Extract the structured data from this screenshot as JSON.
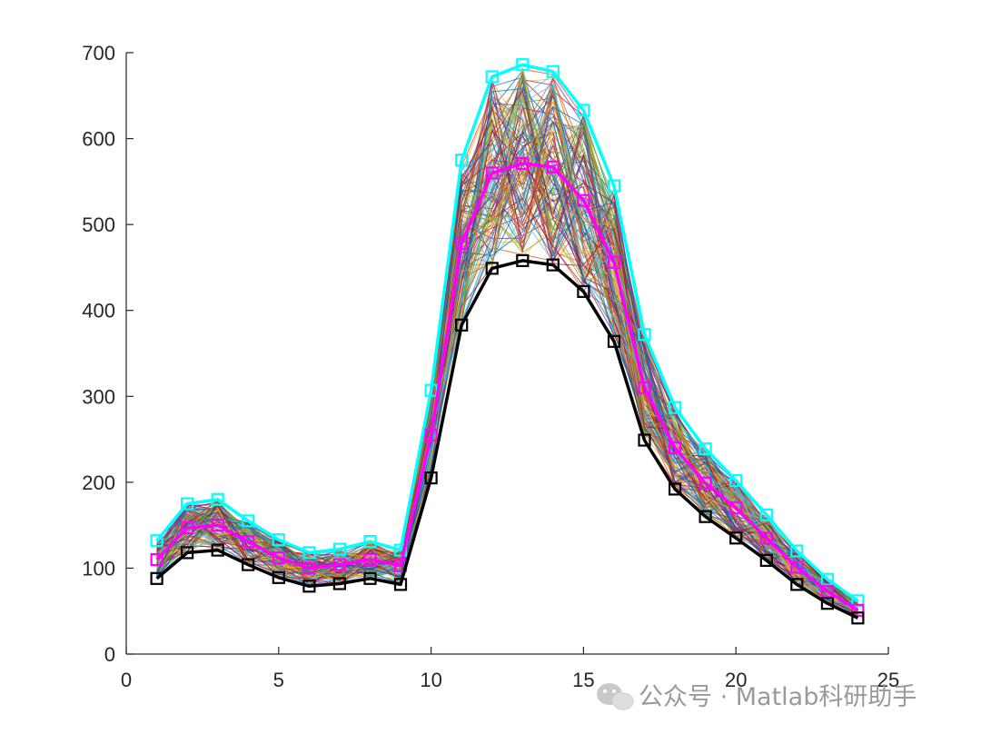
{
  "chart_data": {
    "type": "line",
    "title": "",
    "xlabel": "",
    "ylabel": "",
    "xlim": [
      0,
      25
    ],
    "ylim": [
      0,
      700
    ],
    "xticks": [
      0,
      5,
      10,
      15,
      20,
      25
    ],
    "yticks": [
      0,
      100,
      200,
      300,
      400,
      500,
      600,
      700
    ],
    "grid": false,
    "legend": "none",
    "x": [
      1,
      2,
      3,
      4,
      5,
      6,
      7,
      8,
      9,
      10,
      11,
      12,
      13,
      14,
      15,
      16,
      17,
      18,
      19,
      20,
      21,
      22,
      23,
      24
    ],
    "series": [
      {
        "role": "max",
        "color": "#00ffff",
        "marker": "square",
        "values": [
          132,
          175,
          180,
          155,
          133,
          118,
          122,
          131,
          121,
          307,
          575,
          672,
          686,
          678,
          633,
          545,
          372,
          287,
          239,
          202,
          162,
          120,
          87,
          62
        ]
      },
      {
        "role": "mean",
        "color": "#ff00ff",
        "marker": "square",
        "values": [
          110,
          147,
          150,
          131,
          112,
          100,
          104,
          110,
          103,
          255,
          478,
          560,
          571,
          567,
          528,
          456,
          310,
          240,
          199,
          170,
          135,
          101,
          73,
          51
        ]
      },
      {
        "role": "min",
        "color": "#000000",
        "marker": "square",
        "values": [
          88,
          118,
          121,
          104,
          89,
          79,
          82,
          88,
          81,
          205,
          383,
          449,
          458,
          453,
          422,
          364,
          249,
          192,
          160,
          135,
          109,
          81,
          59,
          42
        ]
      }
    ],
    "ensemble_count": 120,
    "ensemble_colors": [
      "#0072BD",
      "#D95319",
      "#EDB120",
      "#7E2F8E",
      "#77AC30",
      "#4DBEEE",
      "#A2142F"
    ]
  },
  "watermark": {
    "text": "公众号 · Matlab科研助手",
    "icon": "wechat-icon"
  }
}
